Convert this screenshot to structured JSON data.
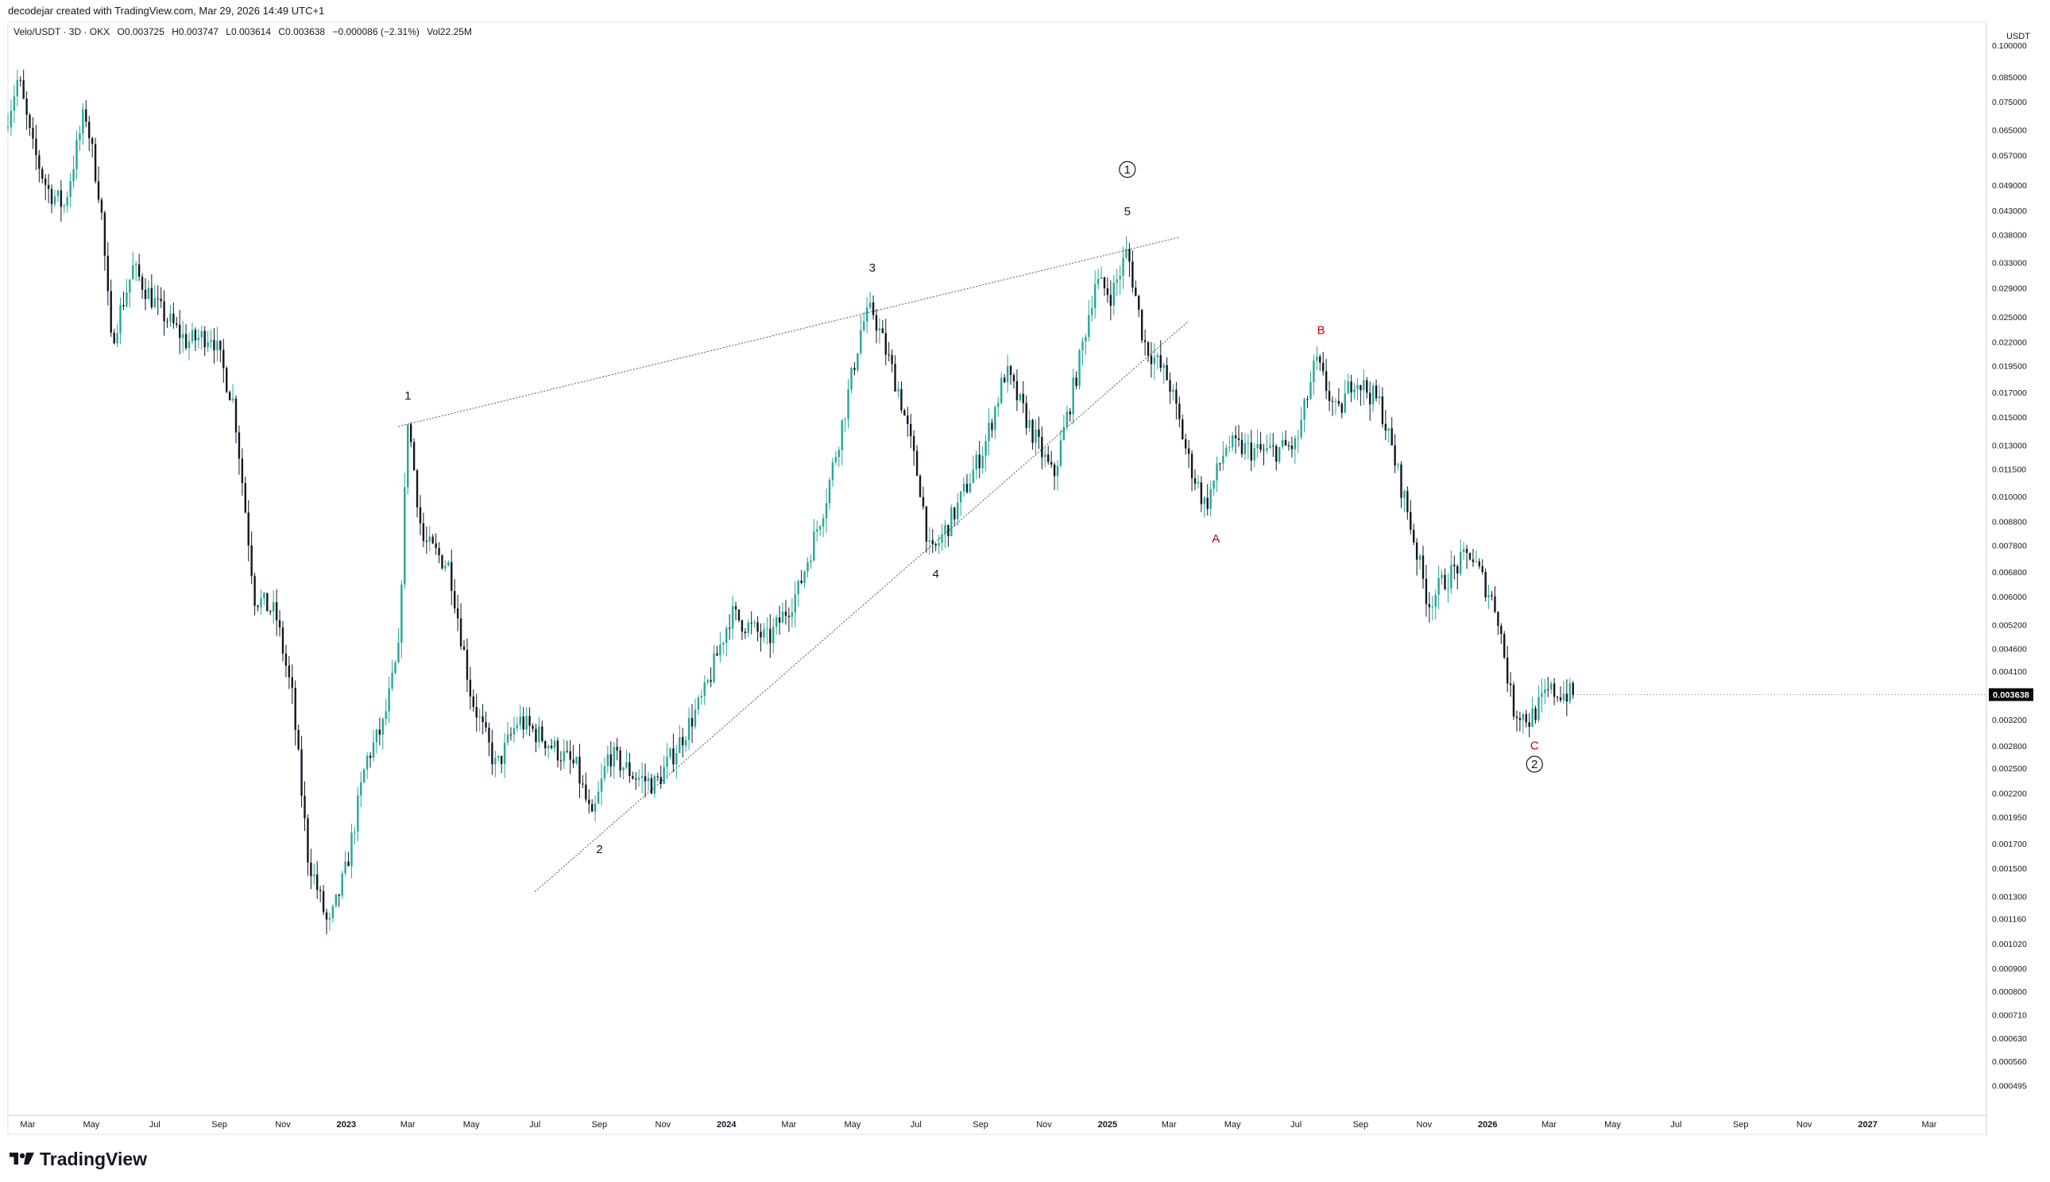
{
  "header": {
    "credit": "decodejar created with TradingView.com, Mar 29, 2026 14:49 UTC+1",
    "symbol": "Velo/USDT · 3D · OKX",
    "open": "O0.003725",
    "high": "H0.003747",
    "low": "L0.003614",
    "close": "C0.003638",
    "change": "−0.000086 (−2.31%)",
    "volume": "Vol22.25M"
  },
  "footer": {
    "brand": "TradingView"
  },
  "colors": {
    "up": "#26a69a",
    "down": "#131722",
    "label_red": "#c00000",
    "axis_text": "#131722",
    "last_price_bg": "#000000"
  },
  "chart_data": {
    "type": "candlestick",
    "title": "Velo/USDT · 3D · OKX",
    "y_unit": "USDT",
    "y_scale": "log",
    "ylim": [
      0.00045,
      0.105
    ],
    "xlim": [
      "2022-02-10",
      "2027-04-25"
    ],
    "y_ticks": [
      "0.100000",
      "0.085000",
      "0.075000",
      "0.065000",
      "0.057000",
      "0.049000",
      "0.043000",
      "0.038000",
      "0.033000",
      "0.029000",
      "0.025000",
      "0.022000",
      "0.019500",
      "0.017000",
      "0.015000",
      "0.013000",
      "0.011500",
      "0.010000",
      "0.008800",
      "0.007800",
      "0.006800",
      "0.006000",
      "0.005200",
      "0.004600",
      "0.004100",
      "0.003200",
      "0.002800",
      "0.002500",
      "0.002200",
      "0.001950",
      "0.001700",
      "0.001500",
      "0.001300",
      "0.001160",
      "0.001020",
      "0.000900",
      "0.000800",
      "0.000710",
      "0.000630",
      "0.000560",
      "0.000495"
    ],
    "x_ticks": [
      "Mar",
      "May",
      "Jul",
      "Sep",
      "Nov",
      "2023",
      "Mar",
      "May",
      "Jul",
      "Sep",
      "Nov",
      "2024",
      "Mar",
      "May",
      "Jul",
      "Sep",
      "Nov",
      "2025",
      "Mar",
      "May",
      "Jul",
      "Sep",
      "Nov",
      "2026",
      "Mar",
      "May",
      "Jul",
      "Sep",
      "Nov",
      "2027",
      "Mar"
    ],
    "last_price": "0.003638",
    "price_path": [
      {
        "x": "2022-02-10",
        "y": 0.07
      },
      {
        "x": "2022-02-20",
        "y": 0.085
      },
      {
        "x": "2022-03-05",
        "y": 0.06
      },
      {
        "x": "2022-03-20",
        "y": 0.048
      },
      {
        "x": "2022-04-05",
        "y": 0.044
      },
      {
        "x": "2022-04-25",
        "y": 0.072
      },
      {
        "x": "2022-05-10",
        "y": 0.045
      },
      {
        "x": "2022-05-20",
        "y": 0.022
      },
      {
        "x": "2022-06-10",
        "y": 0.032
      },
      {
        "x": "2022-07-05",
        "y": 0.026
      },
      {
        "x": "2022-08-01",
        "y": 0.022
      },
      {
        "x": "2022-08-25",
        "y": 0.023
      },
      {
        "x": "2022-09-15",
        "y": 0.016
      },
      {
        "x": "2022-10-05",
        "y": 0.006
      },
      {
        "x": "2022-10-25",
        "y": 0.0055
      },
      {
        "x": "2022-11-10",
        "y": 0.0036
      },
      {
        "x": "2022-11-25",
        "y": 0.0016
      },
      {
        "x": "2022-12-15",
        "y": 0.0011
      },
      {
        "x": "2023-01-01",
        "y": 0.0015
      },
      {
        "x": "2023-01-20",
        "y": 0.0026
      },
      {
        "x": "2023-02-05",
        "y": 0.0031
      },
      {
        "x": "2023-02-20",
        "y": 0.0045
      },
      {
        "x": "2023-03-01",
        "y": 0.015
      },
      {
        "x": "2023-03-15",
        "y": 0.008
      },
      {
        "x": "2023-04-10",
        "y": 0.007
      },
      {
        "x": "2023-05-01",
        "y": 0.0036
      },
      {
        "x": "2023-05-25",
        "y": 0.0025
      },
      {
        "x": "2023-06-15",
        "y": 0.0032
      },
      {
        "x": "2023-07-10",
        "y": 0.0029
      },
      {
        "x": "2023-08-10",
        "y": 0.0025
      },
      {
        "x": "2023-08-25",
        "y": 0.0019
      },
      {
        "x": "2023-09-10",
        "y": 0.0027
      },
      {
        "x": "2023-10-05",
        "y": 0.0024
      },
      {
        "x": "2023-10-25",
        "y": 0.0023
      },
      {
        "x": "2023-11-15",
        "y": 0.0028
      },
      {
        "x": "2023-12-10",
        "y": 0.0036
      },
      {
        "x": "2024-01-05",
        "y": 0.0055
      },
      {
        "x": "2024-02-10",
        "y": 0.0048
      },
      {
        "x": "2024-03-10",
        "y": 0.0062
      },
      {
        "x": "2024-04-05",
        "y": 0.0098
      },
      {
        "x": "2024-04-25",
        "y": 0.016
      },
      {
        "x": "2024-05-10",
        "y": 0.024
      },
      {
        "x": "2024-05-20",
        "y": 0.026
      },
      {
        "x": "2024-06-15",
        "y": 0.017
      },
      {
        "x": "2024-07-05",
        "y": 0.0105
      },
      {
        "x": "2024-07-15",
        "y": 0.0073
      },
      {
        "x": "2024-08-10",
        "y": 0.0095
      },
      {
        "x": "2024-09-05",
        "y": 0.013
      },
      {
        "x": "2024-09-25",
        "y": 0.019
      },
      {
        "x": "2024-10-20",
        "y": 0.014
      },
      {
        "x": "2024-11-10",
        "y": 0.011
      },
      {
        "x": "2024-12-05",
        "y": 0.02
      },
      {
        "x": "2024-12-20",
        "y": 0.03
      },
      {
        "x": "2025-01-05",
        "y": 0.028
      },
      {
        "x": "2025-01-20",
        "y": 0.035
      },
      {
        "x": "2025-02-05",
        "y": 0.022
      },
      {
        "x": "2025-03-01",
        "y": 0.018
      },
      {
        "x": "2025-03-20",
        "y": 0.012
      },
      {
        "x": "2025-04-05",
        "y": 0.0095
      },
      {
        "x": "2025-04-25",
        "y": 0.013
      },
      {
        "x": "2025-06-01",
        "y": 0.0125
      },
      {
        "x": "2025-07-01",
        "y": 0.013
      },
      {
        "x": "2025-07-20",
        "y": 0.02
      },
      {
        "x": "2025-08-10",
        "y": 0.015
      },
      {
        "x": "2025-08-25",
        "y": 0.0185
      },
      {
        "x": "2025-09-20",
        "y": 0.016
      },
      {
        "x": "2025-10-15",
        "y": 0.0095
      },
      {
        "x": "2025-11-05",
        "y": 0.0058
      },
      {
        "x": "2025-11-20",
        "y": 0.0065
      },
      {
        "x": "2025-12-15",
        "y": 0.0075
      },
      {
        "x": "2026-01-10",
        "y": 0.0056
      },
      {
        "x": "2026-01-25",
        "y": 0.0034
      },
      {
        "x": "2026-02-10",
        "y": 0.0032
      },
      {
        "x": "2026-03-01",
        "y": 0.0037
      },
      {
        "x": "2026-03-25",
        "y": 0.003638
      }
    ],
    "trendlines": [
      {
        "from": {
          "x": "2023-02-20",
          "y": 0.0143
        },
        "to": {
          "x": "2025-03-10",
          "y": 0.0375
        }
      },
      {
        "from": {
          "x": "2023-07-01",
          "y": 0.00133
        },
        "to": {
          "x": "2025-03-20",
          "y": 0.0245
        }
      }
    ],
    "annotations": [
      {
        "text": "1",
        "x": "2023-03-01",
        "y": 0.0164,
        "color": "#131722"
      },
      {
        "text": "2",
        "x": "2023-09-01",
        "y": 0.00162,
        "color": "#131722"
      },
      {
        "text": "3",
        "x": "2024-05-20",
        "y": 0.0315,
        "color": "#131722"
      },
      {
        "text": "4",
        "x": "2024-07-20",
        "y": 0.0066,
        "color": "#131722"
      },
      {
        "text": "5",
        "x": "2025-01-20",
        "y": 0.042,
        "color": "#131722"
      },
      {
        "text": "1",
        "x": "2025-01-20",
        "y": 0.052,
        "color": "#131722",
        "circled": true
      },
      {
        "text": "A",
        "x": "2025-04-15",
        "y": 0.0079,
        "color": "#c00000"
      },
      {
        "text": "B",
        "x": "2025-07-25",
        "y": 0.0229,
        "color": "#c00000"
      },
      {
        "text": "C",
        "x": "2026-02-15",
        "y": 0.00275,
        "color": "#c00000"
      },
      {
        "text": "2",
        "x": "2026-02-15",
        "y": 0.0025,
        "color": "#131722",
        "circled": true
      }
    ]
  }
}
